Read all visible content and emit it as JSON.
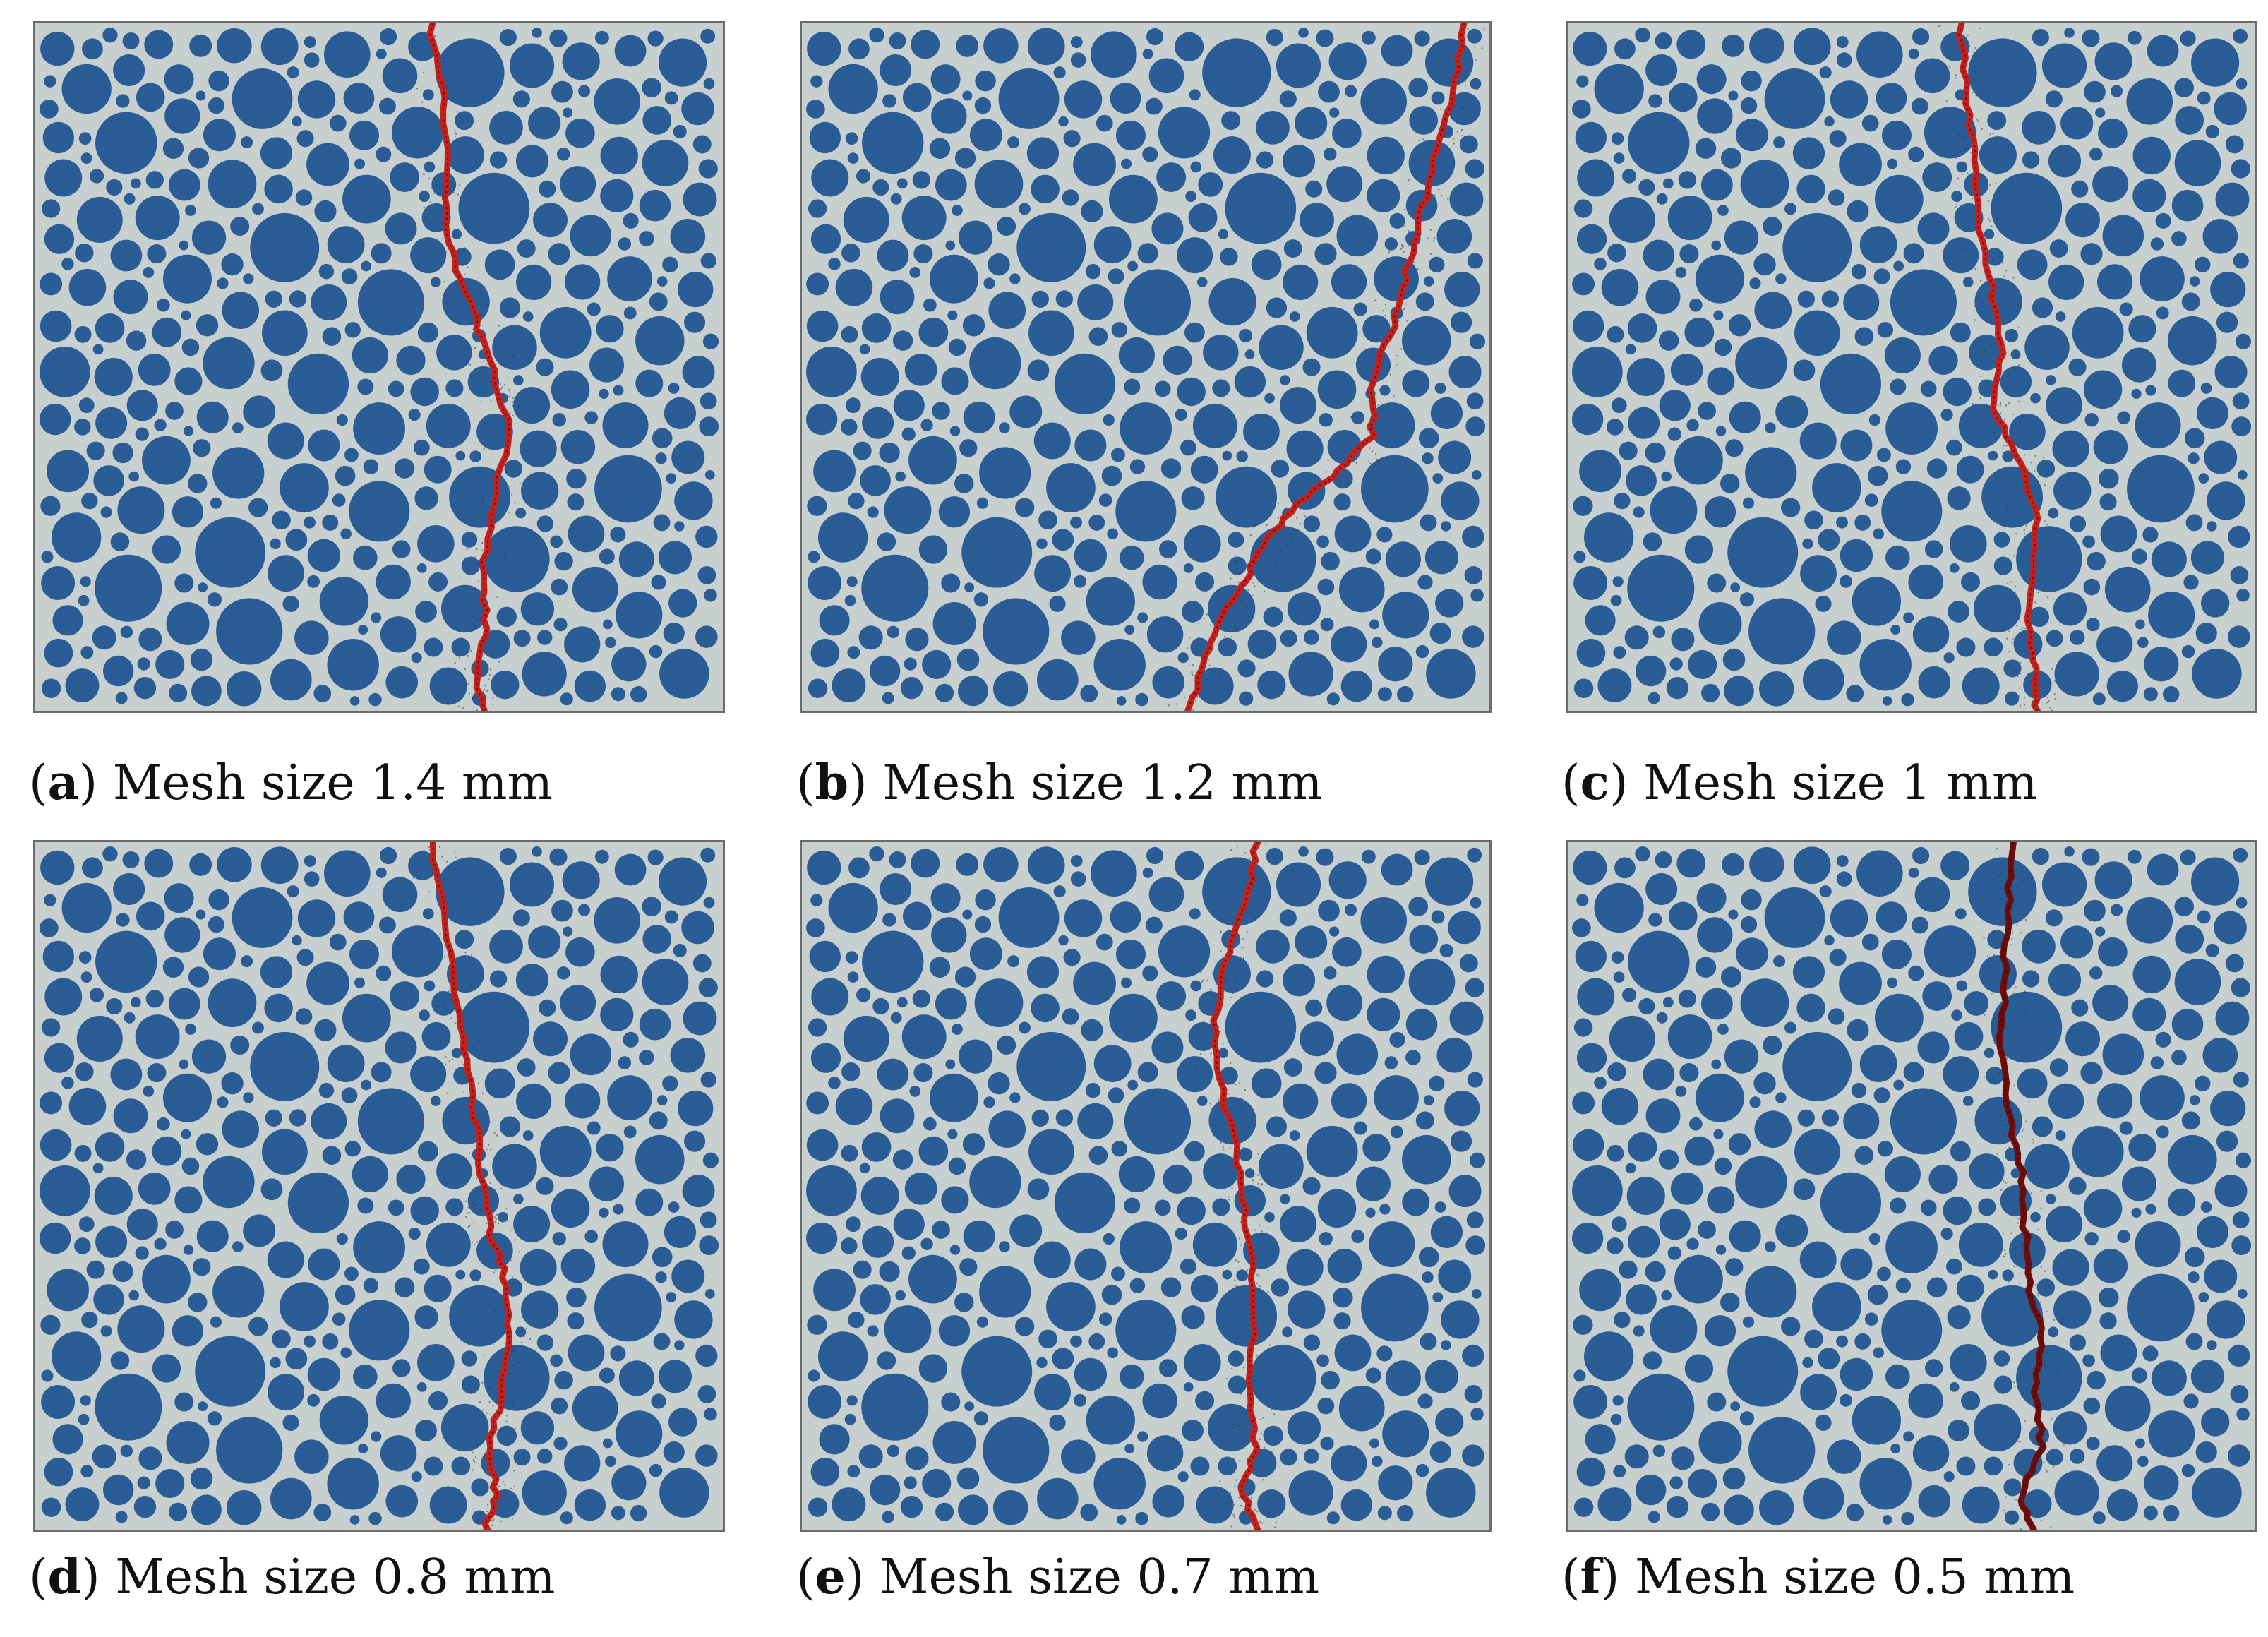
{
  "colors": {
    "matrix": "#c8d0cf",
    "aggregate": "#2a5d96",
    "crack": "#c4201c",
    "crack_dark": "#6e0d0a",
    "border": "#6b6b6b",
    "caption_text": "#111111"
  },
  "panels": [
    {
      "letter": "a",
      "caption_text": "Mesh size 1.4 mm",
      "crack_style": "red"
    },
    {
      "letter": "b",
      "caption_text": "Mesh size 1.2 mm",
      "crack_style": "red"
    },
    {
      "letter": "c",
      "caption_text": "Mesh size 1 mm",
      "crack_style": "red"
    },
    {
      "letter": "d",
      "caption_text": "Mesh size 0.8 mm",
      "crack_style": "red"
    },
    {
      "letter": "e",
      "caption_text": "Mesh size 0.7 mm",
      "crack_style": "red"
    },
    {
      "letter": "f",
      "caption_text": "Mesh size 0.5 mm",
      "crack_style": "dark"
    }
  ]
}
